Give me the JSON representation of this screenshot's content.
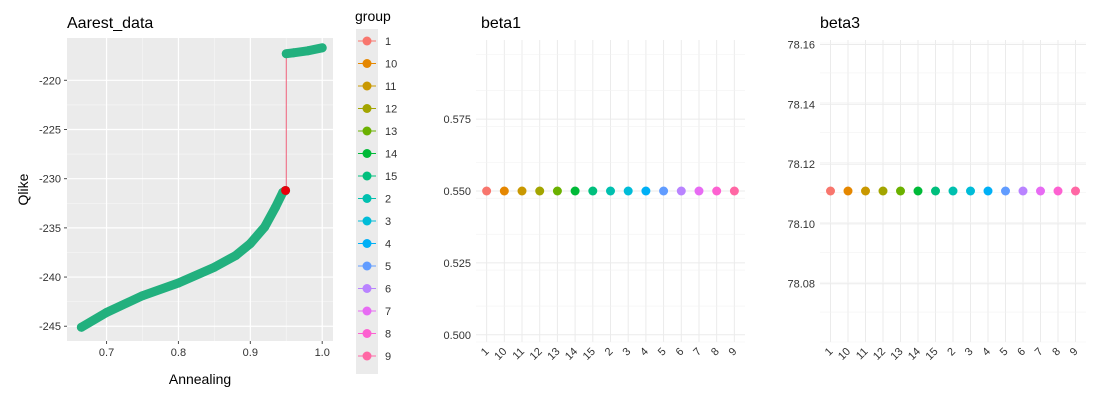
{
  "chart_data": [
    {
      "type": "line",
      "title": "Aarest_data",
      "xlabel": "Annealing",
      "ylabel": "Qlike",
      "xlim": [
        0.645,
        1.015
      ],
      "ylim": [
        -246.5,
        -215.7
      ],
      "xticks": [
        0.7,
        0.8,
        0.9,
        1.0
      ],
      "xtick_labels": [
        "0.7",
        "0.8",
        "0.9",
        "1.0"
      ],
      "yticks": [
        -245,
        -240,
        -235,
        -230,
        -225,
        -220
      ],
      "ytick_labels": [
        "-245",
        "-240",
        "-235",
        "-230",
        "-225",
        "-220"
      ],
      "grid": true,
      "background": "#ebebeb",
      "series": [
        {
          "color": "#22b07e",
          "x": [
            0.665,
            0.7,
            0.75,
            0.8,
            0.85,
            0.88,
            0.9,
            0.92,
            0.935,
            0.945,
            0.949
          ],
          "y": [
            -245.1,
            -243.6,
            -241.9,
            -240.6,
            -239.0,
            -237.8,
            -236.6,
            -234.9,
            -232.9,
            -231.4,
            -231.2
          ]
        },
        {
          "color": "#22b07e",
          "x": [
            0.95,
            0.96,
            0.98,
            1.0
          ],
          "y": [
            -217.3,
            -217.2,
            -217.0,
            -216.7
          ]
        }
      ],
      "jump": {
        "color": "#f0607a",
        "x": [
          0.95,
          0.95
        ],
        "y": [
          -231.2,
          -217.3
        ]
      },
      "highlight_point": {
        "x": 0.949,
        "y": -231.2,
        "color": "#e8000b"
      }
    },
    {
      "type": "scatter",
      "title": "beta1",
      "categories": [
        "1",
        "10",
        "11",
        "12",
        "13",
        "14",
        "15",
        "2",
        "3",
        "4",
        "5",
        "6",
        "7",
        "8",
        "9"
      ],
      "values": [
        0.55,
        0.55,
        0.55,
        0.55,
        0.55,
        0.55,
        0.55,
        0.55,
        0.55,
        0.55,
        0.55,
        0.55,
        0.55,
        0.55,
        0.55
      ],
      "ylim": [
        0.4975,
        0.6025
      ],
      "yticks": [
        0.5,
        0.525,
        0.55,
        0.575
      ],
      "ytick_labels": [
        "0.500",
        "0.525",
        "0.550",
        "0.575"
      ],
      "xlabel": "",
      "ylabel": "",
      "grid": true,
      "background": "#ffffff"
    },
    {
      "type": "scatter",
      "title": "beta3",
      "categories": [
        "1",
        "10",
        "11",
        "12",
        "13",
        "14",
        "15",
        "2",
        "3",
        "4",
        "5",
        "6",
        "7",
        "8",
        "9"
      ],
      "values": [
        78.111,
        78.111,
        78.111,
        78.111,
        78.111,
        78.111,
        78.111,
        78.111,
        78.111,
        78.111,
        78.111,
        78.111,
        78.111,
        78.111,
        78.111
      ],
      "ylim": [
        78.0605,
        78.1615
      ],
      "yticks": [
        78.08,
        78.1,
        78.12,
        78.14,
        78.16
      ],
      "ytick_labels": [
        "78.08",
        "78.10",
        "78.12",
        "78.14",
        "78.16"
      ],
      "xlabel": "",
      "ylabel": "",
      "grid": true,
      "background": "#ffffff"
    }
  ],
  "legend": {
    "title": "group",
    "placement": "right of first panel",
    "background": "#ebebeb",
    "items": [
      {
        "label": "1",
        "color": "#f8766d"
      },
      {
        "label": "10",
        "color": "#e58700"
      },
      {
        "label": "11",
        "color": "#c99800"
      },
      {
        "label": "12",
        "color": "#a3a500"
      },
      {
        "label": "13",
        "color": "#6bb100"
      },
      {
        "label": "14",
        "color": "#00ba38"
      },
      {
        "label": "15",
        "color": "#00bf7d"
      },
      {
        "label": "2",
        "color": "#00c0af"
      },
      {
        "label": "3",
        "color": "#00bcd8"
      },
      {
        "label": "4",
        "color": "#00b0f6"
      },
      {
        "label": "5",
        "color": "#619cff"
      },
      {
        "label": "6",
        "color": "#b983ff"
      },
      {
        "label": "7",
        "color": "#e76bf3"
      },
      {
        "label": "8",
        "color": "#fd61d1"
      },
      {
        "label": "9",
        "color": "#ff67a4"
      }
    ]
  }
}
